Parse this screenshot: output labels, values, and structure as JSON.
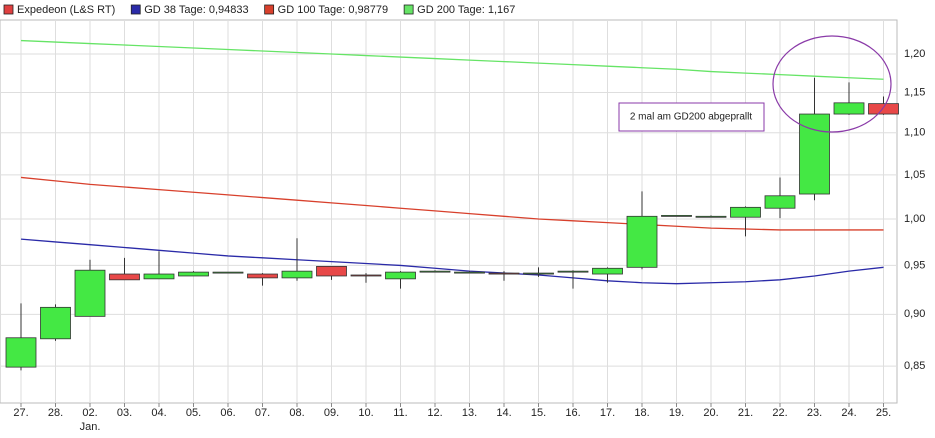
{
  "chart_data": {
    "type": "candlestick",
    "name": "Expedeon (L&S RT)",
    "color": "#e04040",
    "up_color": "#44e844",
    "down_color": "#e84848",
    "categories": [
      "27.",
      "28.",
      "02.",
      "03.",
      "04.",
      "05.",
      "06.",
      "07.",
      "08.",
      "09.",
      "10.",
      "11.",
      "12.",
      "13.",
      "14.",
      "15.",
      "16.",
      "17.",
      "18.",
      "19.",
      "20.",
      "21.",
      "22.",
      "23.",
      "24.",
      "25."
    ],
    "category_sublabels": [
      null,
      null,
      "Jan.",
      null,
      null,
      null,
      null,
      null,
      null,
      null,
      null,
      null,
      null,
      null,
      null,
      null,
      null,
      null,
      null,
      null,
      null,
      null,
      null,
      null,
      null,
      null
    ],
    "open": [
      0.849,
      0.876,
      0.898,
      0.941,
      0.936,
      0.939,
      0.942,
      0.941,
      0.937,
      0.949,
      0.94,
      0.936,
      0.944,
      0.943,
      0.942,
      0.941,
      0.943,
      0.941,
      0.948,
      1.003,
      1.002,
      1.002,
      1.012,
      1.028,
      1.123,
      1.136
    ],
    "high": [
      0.911,
      0.91,
      0.956,
      0.958,
      0.965,
      0.944,
      0.943,
      0.942,
      0.979,
      0.949,
      0.942,
      0.944,
      0.945,
      0.944,
      0.944,
      0.948,
      0.945,
      0.948,
      1.031,
      1.004,
      1.004,
      1.014,
      1.047,
      1.169,
      1.163,
      1.145
    ],
    "low": [
      0.846,
      0.874,
      0.898,
      0.935,
      0.936,
      0.939,
      0.942,
      0.929,
      0.934,
      0.935,
      0.932,
      0.926,
      0.943,
      0.942,
      0.934,
      0.938,
      0.926,
      0.932,
      0.946,
      1.003,
      1.002,
      0.981,
      1.001,
      1.021,
      1.122,
      1.122
    ],
    "close": [
      0.877,
      0.907,
      0.945,
      0.935,
      0.941,
      0.943,
      0.943,
      0.937,
      0.944,
      0.939,
      0.939,
      0.943,
      0.944,
      0.943,
      0.941,
      0.942,
      0.944,
      0.947,
      1.003,
      1.004,
      1.003,
      1.013,
      1.026,
      1.123,
      1.137,
      1.123
    ],
    "series": [
      {
        "name": "GD 38 Tage: 0,94833",
        "color": "#2a2aa8",
        "values": [
          0.978,
          0.975,
          0.972,
          0.969,
          0.966,
          0.963,
          0.96,
          0.958,
          0.956,
          0.954,
          0.952,
          0.95,
          0.947,
          0.944,
          0.942,
          0.94,
          0.937,
          0.934,
          0.932,
          0.931,
          0.932,
          0.933,
          0.935,
          0.939,
          0.944,
          0.948
        ]
      },
      {
        "name": "GD 100 Tage: 0,98779",
        "color": "#d8402c",
        "values": [
          1.047,
          1.043,
          1.039,
          1.036,
          1.033,
          1.03,
          1.027,
          1.024,
          1.021,
          1.018,
          1.015,
          1.012,
          1.009,
          1.006,
          1.003,
          1.0,
          0.998,
          0.996,
          0.994,
          0.992,
          0.99,
          0.989,
          0.988,
          0.988,
          0.988,
          0.988
        ]
      },
      {
        "name": "GD 200 Tage: 1,167",
        "color": "#66e466",
        "values": [
          1.218,
          1.216,
          1.214,
          1.212,
          1.21,
          1.208,
          1.206,
          1.204,
          1.202,
          1.2,
          1.198,
          1.196,
          1.194,
          1.192,
          1.19,
          1.188,
          1.186,
          1.184,
          1.182,
          1.18,
          1.177,
          1.175,
          1.173,
          1.171,
          1.169,
          1.167
        ]
      }
    ],
    "ylim": [
      0.816,
      1.246
    ],
    "log_y": true,
    "grid": true,
    "yticks": [
      {
        "value": 0.85,
        "label": "0,85"
      },
      {
        "value": 0.9,
        "label": "0,90"
      },
      {
        "value": 0.95,
        "label": "0,95"
      },
      {
        "value": 1.0,
        "label": "1,00"
      },
      {
        "value": 1.05,
        "label": "1,05"
      },
      {
        "value": 1.1,
        "label": "1,10"
      },
      {
        "value": 1.15,
        "label": "1,15"
      },
      {
        "value": 1.2,
        "label": "1,20"
      }
    ],
    "annotation": "2 mal am GD200 abgeprallt"
  }
}
